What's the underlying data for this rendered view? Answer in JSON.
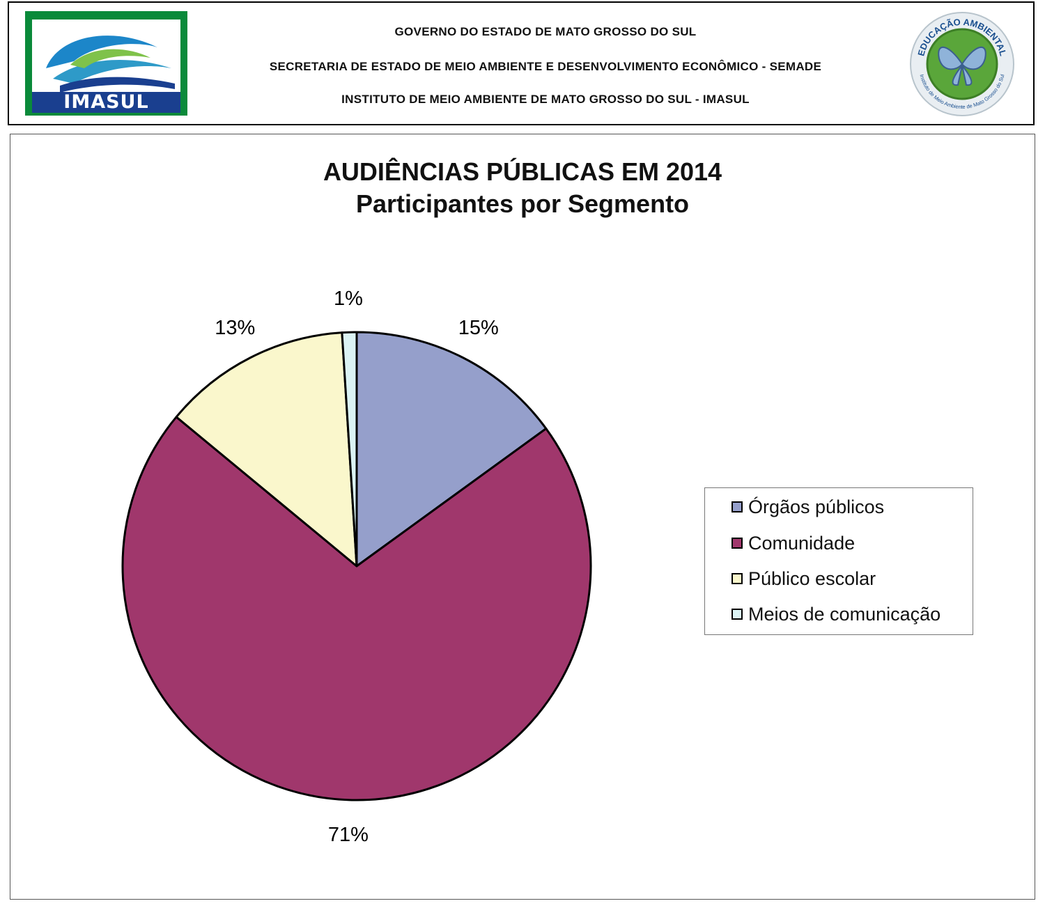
{
  "header": {
    "line1": "GOVERNO DO ESTADO DE MATO GROSSO DO SUL",
    "line2": "SECRETARIA DE ESTADO DE MEIO AMBIENTE E DESENVOLVIMENTO ECONÔMICO - SEMADE",
    "line3": "INSTITUTO DE MEIO AMBIENTE DE MATO GROSSO DO SUL - IMASUL",
    "logo_left_text": "IMASUL",
    "logo_right_text_top": "EDUCAÇÃO AMBIENTAL",
    "logo_right_text_bottom": "Instituto de Meio Ambiente de Mato Grosso do Sul"
  },
  "chart_data": {
    "type": "pie",
    "title": "AUDIÊNCIAS PÚBLICAS EM 2014",
    "subtitle": "Participantes por Segmento",
    "legend_position": "right",
    "categories": [
      "Órgãos públicos",
      "Comunidade",
      "Público escolar",
      "Meios de comunicação"
    ],
    "values": [
      15,
      71,
      13,
      1
    ],
    "labels": [
      "15%",
      "71%",
      "13%",
      "1%"
    ],
    "colors": [
      "#959fcb",
      "#a0376c",
      "#faf7cc",
      "#dbf3f4"
    ]
  }
}
